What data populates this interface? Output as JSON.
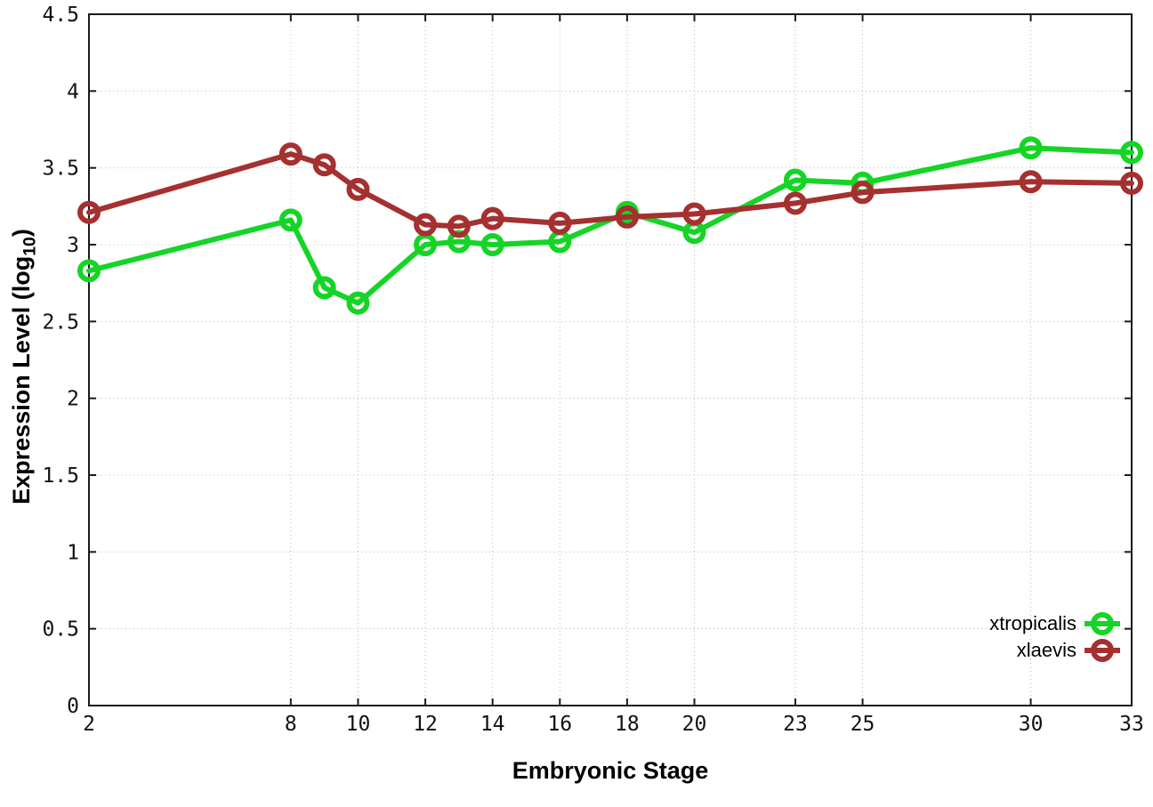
{
  "chart_data": {
    "type": "line",
    "title": "",
    "xlabel": "Embryonic Stage",
    "ylabel": "Expression Level (log10)",
    "ylabel_parts": {
      "main": "Expression Level (log",
      "sub": "10",
      "end": ")"
    },
    "x": [
      2,
      8,
      9,
      10,
      12,
      13,
      14,
      16,
      18,
      20,
      23,
      25,
      30,
      33
    ],
    "series": [
      {
        "name": "xtropicalis",
        "color": "#16d426",
        "marker": "open-circle",
        "values": [
          2.83,
          3.16,
          2.72,
          2.62,
          3.0,
          3.02,
          3.0,
          3.02,
          3.21,
          3.08,
          3.42,
          3.4,
          3.63,
          3.6
        ]
      },
      {
        "name": "xlaevis",
        "color": "#a53030",
        "marker": "open-circle",
        "values": [
          3.21,
          3.59,
          3.52,
          3.36,
          3.13,
          3.12,
          3.17,
          3.14,
          3.18,
          3.2,
          3.27,
          3.34,
          3.41,
          3.4
        ]
      }
    ],
    "xticks": [
      2,
      8,
      10,
      12,
      14,
      16,
      18,
      20,
      23,
      25,
      30,
      33
    ],
    "yticks": [
      0,
      0.5,
      1,
      1.5,
      2,
      2.5,
      3,
      3.5,
      4,
      4.5
    ],
    "xlim": [
      2,
      33
    ],
    "ylim": [
      0,
      4.5
    ],
    "grid": true,
    "grid_style": "dotted",
    "grid_color": "#b4b4b4",
    "axis_color": "#1a1a1a",
    "legend_position": "bottom-right"
  }
}
